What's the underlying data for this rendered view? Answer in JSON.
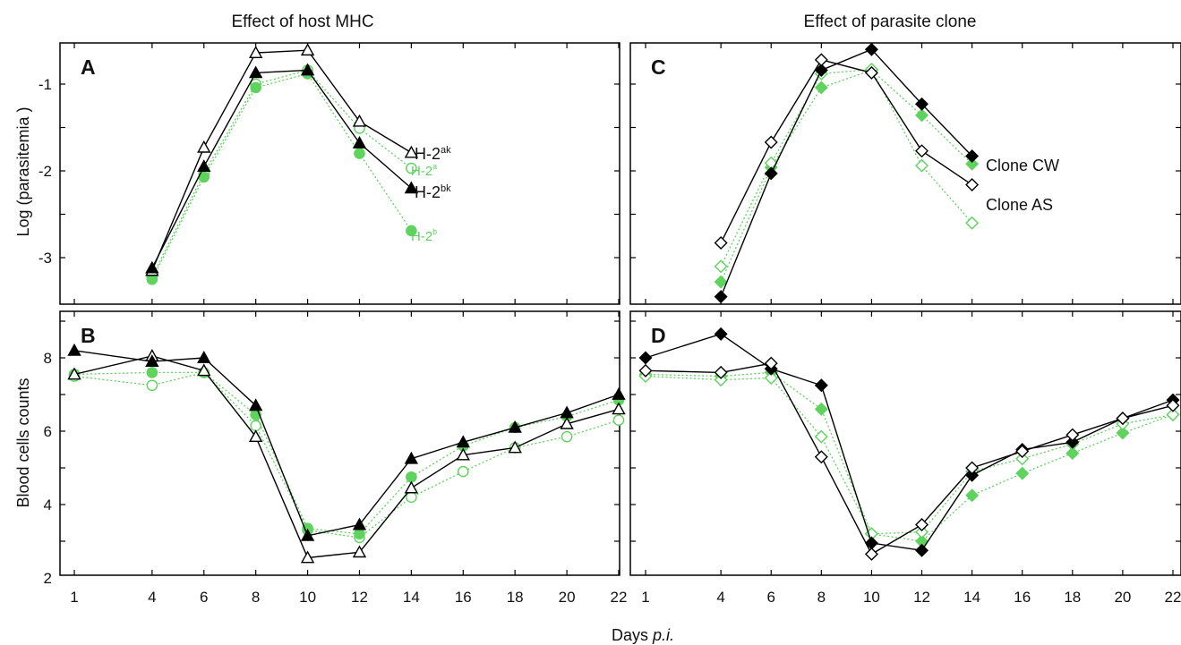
{
  "figure": {
    "col_titles": [
      "Effect of host MHC",
      "Effect of parasite clone"
    ],
    "xlabel_main": "Days ",
    "xlabel_italic": "p.i.",
    "ylabel_top": "Log (parasitemia )",
    "ylabel_bottom": "Blood cells counts",
    "colors": {
      "black": "#000000",
      "green": "#5ed35e"
    }
  },
  "chart_data": [
    {
      "panel": "A",
      "type": "line",
      "title": "Effect of host MHC",
      "xlabel": "Days p.i.",
      "ylabel": "Log (parasitemia )",
      "x_ticks": [
        1,
        4,
        6,
        8,
        10,
        12,
        14,
        16,
        18,
        20,
        22
      ],
      "y_ticks": [
        -1,
        -2,
        -3
      ],
      "xlim": [
        0,
        22.5
      ],
      "ylim": [
        -3.55,
        -0.48
      ],
      "legend_position": "right",
      "series": [
        {
          "name": "H-2",
          "sup": "ak",
          "color": "#000000",
          "marker": "triangle-open",
          "dash": "solid",
          "x": [
            4,
            6,
            8,
            10,
            12,
            14
          ],
          "values": [
            -3.15,
            -1.73,
            -0.64,
            -0.61,
            -1.43,
            -1.79
          ]
        },
        {
          "name": "H-2",
          "sup": "a",
          "color": "#5ed35e",
          "marker": "circle-open",
          "dash": "dotted",
          "x": [
            4,
            6,
            8,
            10,
            12,
            14
          ],
          "values": [
            -3.22,
            -2.03,
            -1.0,
            -0.84,
            -1.51,
            -1.97
          ]
        },
        {
          "name": "H-2",
          "sup": "bk",
          "color": "#000000",
          "marker": "triangle-filled",
          "dash": "solid",
          "x": [
            4,
            6,
            8,
            10,
            12,
            14
          ],
          "values": [
            -3.12,
            -1.95,
            -0.87,
            -0.84,
            -1.68,
            -2.2
          ]
        },
        {
          "name": "H-2",
          "sup": "b",
          "color": "#5ed35e",
          "marker": "circle-filled",
          "dash": "dotted",
          "x": [
            4,
            6,
            8,
            10,
            12,
            14
          ],
          "values": [
            -3.25,
            -2.07,
            -1.04,
            -0.88,
            -1.8,
            -2.69
          ]
        }
      ]
    },
    {
      "panel": "B",
      "type": "line",
      "xlabel": "Days p.i.",
      "ylabel": "Blood cells counts",
      "x_ticks": [
        1,
        4,
        6,
        8,
        10,
        12,
        14,
        16,
        18,
        20,
        22
      ],
      "y_ticks": [
        2,
        4,
        6,
        8
      ],
      "xlim": [
        0,
        22.5
      ],
      "ylim": [
        2,
        9.2
      ],
      "series": [
        {
          "name": "H-2ak",
          "color": "#000000",
          "marker": "triangle-open",
          "dash": "solid",
          "x": [
            1,
            4,
            6,
            8,
            10,
            12,
            14,
            16,
            18,
            20,
            22
          ],
          "values": [
            7.55,
            8.05,
            7.65,
            5.85,
            2.55,
            2.7,
            4.45,
            5.35,
            5.55,
            6.2,
            6.6
          ]
        },
        {
          "name": "H-2a",
          "color": "#5ed35e",
          "marker": "circle-open",
          "dash": "dotted",
          "x": [
            1,
            4,
            6,
            8,
            10,
            12,
            14,
            16,
            18,
            20,
            22
          ],
          "values": [
            7.5,
            7.25,
            7.6,
            6.15,
            3.3,
            3.1,
            4.2,
            4.9,
            5.55,
            5.85,
            6.3
          ]
        },
        {
          "name": "H-2bk",
          "color": "#000000",
          "marker": "triangle-filled",
          "dash": "solid",
          "x": [
            1,
            4,
            6,
            8,
            10,
            12,
            14,
            16,
            18,
            20,
            22
          ],
          "values": [
            8.2,
            7.9,
            8.0,
            6.7,
            3.15,
            3.45,
            5.25,
            5.7,
            6.1,
            6.5,
            7.0
          ]
        },
        {
          "name": "H-2b",
          "color": "#5ed35e",
          "marker": "circle-filled",
          "dash": "dotted",
          "x": [
            1,
            4,
            6,
            8,
            10,
            12,
            14,
            16,
            18,
            20,
            22
          ],
          "values": [
            7.55,
            7.6,
            7.6,
            6.45,
            3.35,
            3.2,
            4.75,
            5.6,
            6.1,
            6.4,
            6.85
          ]
        }
      ]
    },
    {
      "panel": "C",
      "type": "line",
      "title": "Effect of parasite clone",
      "xlabel": "Days p.i.",
      "ylabel": "Log (parasitemia )",
      "x_ticks": [
        1,
        4,
        6,
        8,
        10,
        12,
        14,
        16,
        18,
        20,
        22
      ],
      "y_ticks": [
        -1,
        -2,
        -3
      ],
      "xlim": [
        0,
        22.5
      ],
      "ylim": [
        -3.55,
        -0.48
      ],
      "legend_position": "right",
      "series": [
        {
          "name": "Clone CW",
          "color": "#000000",
          "marker": "diamond-filled",
          "dash": "solid",
          "x": [
            4,
            6,
            8,
            10,
            12,
            14
          ],
          "values": [
            -3.45,
            -2.03,
            -0.84,
            -0.6,
            -1.23,
            -1.83
          ]
        },
        {
          "name": "Clone CW",
          "color": "#5ed35e",
          "marker": "diamond-filled",
          "dash": "dotted",
          "x": [
            4,
            6,
            8,
            10,
            12,
            14
          ],
          "values": [
            -3.28,
            -1.96,
            -1.04,
            -0.84,
            -1.36,
            -1.92
          ]
        },
        {
          "name": "Clone AS",
          "color": "#000000",
          "marker": "diamond-open",
          "dash": "solid",
          "x": [
            4,
            6,
            8,
            10,
            12,
            14
          ],
          "values": [
            -2.83,
            -1.67,
            -0.72,
            -0.87,
            -1.77,
            -2.16
          ]
        },
        {
          "name": "Clone AS",
          "color": "#5ed35e",
          "marker": "diamond-open",
          "dash": "dotted",
          "x": [
            4,
            6,
            8,
            10,
            12,
            14
          ],
          "values": [
            -3.1,
            -1.91,
            -0.88,
            -0.83,
            -1.94,
            -2.6
          ]
        }
      ]
    },
    {
      "panel": "D",
      "type": "line",
      "xlabel": "Days p.i.",
      "ylabel": "Blood cells counts",
      "x_ticks": [
        1,
        4,
        6,
        8,
        10,
        12,
        14,
        16,
        18,
        20,
        22
      ],
      "y_ticks": [
        2,
        4,
        6,
        8
      ],
      "xlim": [
        0,
        22.5
      ],
      "ylim": [
        2,
        9.2
      ],
      "series": [
        {
          "name": "Clone CW",
          "color": "#000000",
          "marker": "diamond-filled",
          "dash": "solid",
          "x": [
            1,
            4,
            6,
            8,
            10,
            12,
            14,
            16,
            18,
            20,
            22
          ],
          "values": [
            8.0,
            8.65,
            7.7,
            7.25,
            2.95,
            2.75,
            4.8,
            5.5,
            5.7,
            6.35,
            6.85
          ]
        },
        {
          "name": "Clone CW",
          "color": "#5ed35e",
          "marker": "diamond-filled",
          "dash": "dotted",
          "x": [
            1,
            4,
            6,
            8,
            10,
            12,
            14,
            16,
            18,
            20,
            22
          ],
          "values": [
            7.55,
            7.5,
            7.6,
            6.6,
            3.2,
            3.0,
            4.25,
            4.85,
            5.4,
            5.95,
            6.45
          ]
        },
        {
          "name": "Clone AS",
          "color": "#000000",
          "marker": "diamond-open",
          "dash": "solid",
          "x": [
            1,
            4,
            6,
            8,
            10,
            12,
            14,
            16,
            18,
            20,
            22
          ],
          "values": [
            7.65,
            7.6,
            7.85,
            5.3,
            2.65,
            3.45,
            5.0,
            5.45,
            5.9,
            6.35,
            6.7
          ]
        },
        {
          "name": "Clone AS",
          "color": "#5ed35e",
          "marker": "diamond-open",
          "dash": "dotted",
          "x": [
            1,
            4,
            6,
            8,
            10,
            12,
            14,
            16,
            18,
            20,
            22
          ],
          "values": [
            7.5,
            7.4,
            7.45,
            5.85,
            3.2,
            3.25,
            4.9,
            5.25,
            5.65,
            6.2,
            6.45
          ]
        }
      ]
    }
  ]
}
